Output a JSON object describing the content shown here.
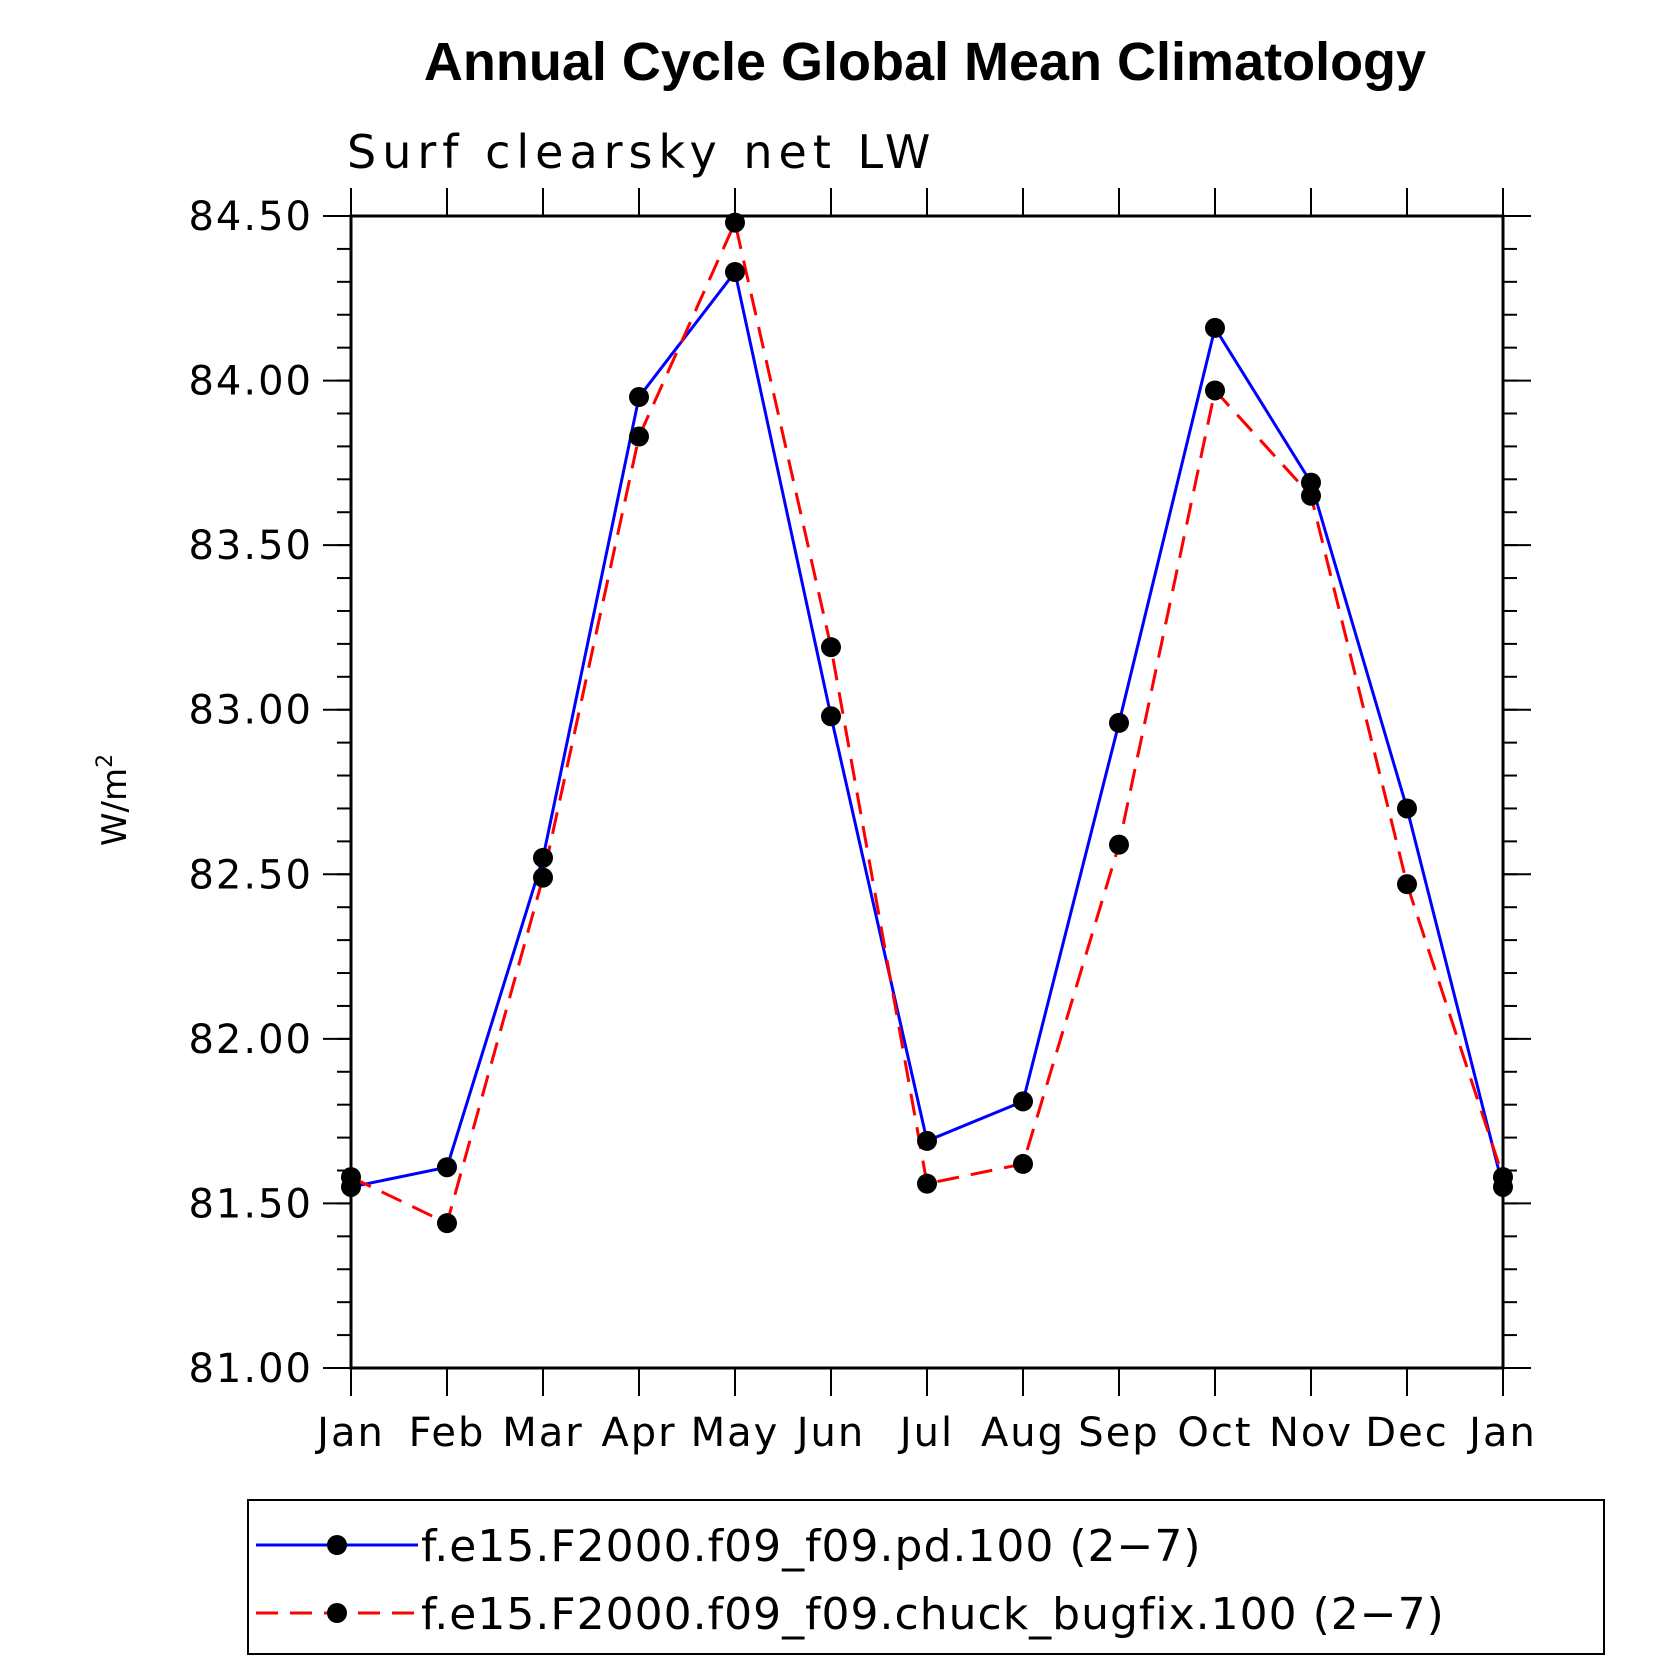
{
  "chart_data": {
    "type": "line",
    "title": "Annual Cycle Global Mean Climatology",
    "subtitle": "Surf clearsky net LW",
    "ylabel_main": "W/m",
    "ylabel_sup": "2",
    "xlabel": "",
    "categories": [
      "Jan",
      "Feb",
      "Mar",
      "Apr",
      "May",
      "Jun",
      "Jul",
      "Aug",
      "Sep",
      "Oct",
      "Nov",
      "Dec",
      "Jan"
    ],
    "ylim": [
      81.0,
      84.5
    ],
    "yticks": [
      81.0,
      81.5,
      82.0,
      82.5,
      83.0,
      83.5,
      84.0,
      84.5
    ],
    "ytick_labels": [
      "81.00",
      "81.50",
      "82.00",
      "82.50",
      "83.00",
      "83.50",
      "84.00",
      "84.50"
    ],
    "grid": false,
    "legend_position": "bottom",
    "series": [
      {
        "name": "f.e15.F2000.f09_f09.pd.100 (2−7)",
        "color": "#0000ff",
        "style": "solid",
        "values": [
          81.55,
          81.61,
          82.55,
          83.95,
          84.33,
          82.98,
          81.69,
          81.81,
          82.96,
          84.16,
          83.69,
          82.7,
          81.55
        ]
      },
      {
        "name": "f.e15.F2000.f09_f09.chuck_bugfix.100 (2−7)",
        "color": "#ff0000",
        "style": "dashed",
        "values": [
          81.58,
          81.44,
          82.49,
          83.83,
          84.48,
          83.19,
          81.56,
          81.62,
          82.59,
          83.97,
          83.65,
          82.47,
          81.58
        ]
      }
    ]
  }
}
